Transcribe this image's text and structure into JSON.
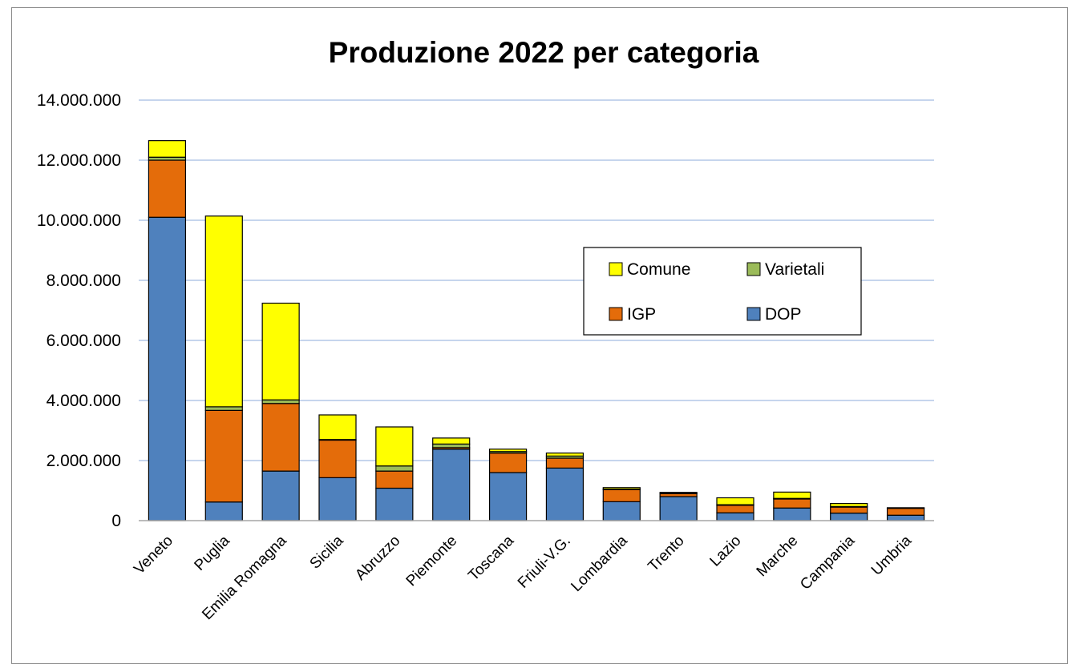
{
  "chart_data": {
    "type": "bar",
    "stacked": true,
    "title": "Produzione 2022 per categoria",
    "xlabel": "",
    "ylabel": "",
    "ylim": [
      0,
      14000000
    ],
    "yticks": [
      0,
      2000000,
      4000000,
      6000000,
      8000000,
      10000000,
      12000000,
      14000000
    ],
    "ytick_labels": [
      "0",
      "2.000.000",
      "4.000.000",
      "6.000.000",
      "8.000.000",
      "10.000.000",
      "12.000.000",
      "14.000.000"
    ],
    "grid": true,
    "legend_position": "center-right",
    "categories": [
      "Veneto",
      "Puglia",
      "Emilia Romagna",
      "Sicilia",
      "Abruzzo",
      "Piemonte",
      "Toscana",
      "Friuli-V.G.",
      "Lombardia",
      "Trento",
      "Lazio",
      "Marche",
      "Campania",
      "Umbria"
    ],
    "series": [
      {
        "name": "DOP",
        "color": "#4f81bd",
        "values": [
          10100000,
          620000,
          1650000,
          1430000,
          1080000,
          2380000,
          1600000,
          1750000,
          630000,
          800000,
          260000,
          420000,
          250000,
          180000
        ]
      },
      {
        "name": "IGP",
        "color": "#e46c0a",
        "values": [
          1900000,
          3050000,
          2250000,
          1250000,
          570000,
          50000,
          650000,
          330000,
          400000,
          100000,
          250000,
          300000,
          200000,
          230000
        ]
      },
      {
        "name": "Varietali",
        "color": "#9bbb59",
        "values": [
          100000,
          120000,
          120000,
          20000,
          170000,
          120000,
          50000,
          70000,
          20000,
          20000,
          20000,
          20000,
          20000,
          10000
        ]
      },
      {
        "name": "Comune",
        "color": "#ffff00",
        "values": [
          550000,
          6350000,
          3220000,
          820000,
          1300000,
          200000,
          80000,
          100000,
          50000,
          20000,
          230000,
          210000,
          100000,
          10000
        ]
      }
    ],
    "legend": [
      {
        "label": "Comune",
        "series": "Comune"
      },
      {
        "label": "Varietali",
        "series": "Varietali"
      },
      {
        "label": "IGP",
        "series": "IGP"
      },
      {
        "label": "DOP",
        "series": "DOP"
      }
    ],
    "colors": {
      "gridline": "#b4c7e7",
      "axis": "#a6a6a6",
      "border": "#000000"
    }
  }
}
